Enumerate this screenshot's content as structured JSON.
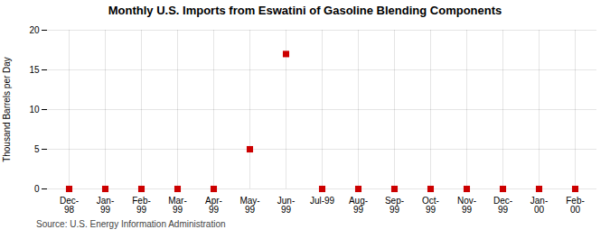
{
  "chart_data": {
    "type": "scatter",
    "title": "Monthly U.S. Imports from Eswatini of Gasoline Blending Components",
    "ylabel": "Thousand Barrels per Day",
    "source": "Source: U.S. Energy Information Administration",
    "categories": [
      "Dec-\n98",
      "Jan-\n99",
      "Feb-\n99",
      "Mar-\n99",
      "Apr-\n99",
      "May-\n99",
      "Jun-\n99",
      "Jul-99",
      "Aug-\n99",
      "Sep-\n99",
      "Oct-\n99",
      "Nov-\n99",
      "Dec-\n99",
      "Jan-\n00",
      "Feb-\n00"
    ],
    "values": [
      0,
      0,
      0,
      0,
      0,
      5,
      17,
      0,
      0,
      0,
      0,
      0,
      0,
      0,
      0
    ],
    "color": "#cc0000",
    "marker": "square",
    "ylim": [
      0,
      20
    ],
    "yticks": [
      0,
      5,
      10,
      15,
      20
    ],
    "grid": true
  }
}
